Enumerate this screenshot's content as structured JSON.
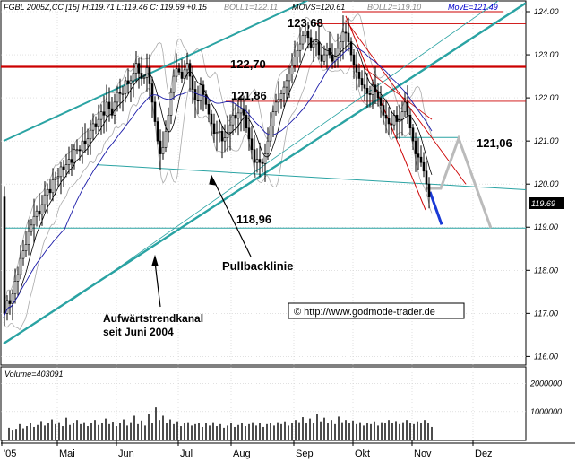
{
  "chart_data": {
    "type": "candlestick",
    "header": {
      "symbol": "FGBL 2005Z,CC [15]",
      "ohlc": "H:119.71 L:119.46 C: 119.69 +0.15",
      "boll1": "BOLL1=122.11",
      "movs": "MOVS=120.61",
      "boll2": "BOLL2=119.10",
      "move": "MovE=121.49"
    },
    "price_axis": {
      "ylim": [
        115.8,
        124.25
      ],
      "ticks": [
        "124.00",
        "123.00",
        "122.00",
        "121.00",
        "120.00",
        "119.00",
        "118.00",
        "117.00",
        "116.00"
      ],
      "last_price": "119.69"
    },
    "volume_axis": {
      "label": "Volume=403091",
      "ticks": [
        "2000000",
        "1000000"
      ]
    },
    "x_labels": [
      "'05",
      "Mai",
      "Jun",
      "Jul",
      "Aug",
      "Sep",
      "Okt",
      "Nov",
      "Dez"
    ],
    "price_path": [
      [
        0,
        116.9
      ],
      [
        4,
        117.3
      ],
      [
        8,
        117.2
      ],
      [
        12,
        117.7
      ],
      [
        16,
        117.9
      ],
      [
        20,
        118.4
      ],
      [
        24,
        118.5
      ],
      [
        28,
        118.9
      ],
      [
        32,
        119.1
      ],
      [
        36,
        119.4
      ],
      [
        40,
        119.3
      ],
      [
        44,
        119.6
      ],
      [
        48,
        119.9
      ],
      [
        52,
        119.8
      ],
      [
        56,
        120.2
      ],
      [
        60,
        120.1
      ],
      [
        64,
        120.4
      ],
      [
        68,
        120.3
      ],
      [
        72,
        120.6
      ],
      [
        76,
        120.5
      ],
      [
        80,
        120.9
      ],
      [
        84,
        120.7
      ],
      [
        88,
        121.0
      ],
      [
        92,
        120.9
      ],
      [
        96,
        121.2
      ],
      [
        100,
        121.4
      ],
      [
        104,
        121.3
      ],
      [
        108,
        121.7
      ],
      [
        112,
        121.6
      ],
      [
        116,
        122.0
      ],
      [
        120,
        121.5
      ],
      [
        124,
        121.9
      ],
      [
        128,
        122.2
      ],
      [
        132,
        122.0
      ],
      [
        136,
        122.4
      ],
      [
        140,
        122.3
      ],
      [
        144,
        122.5
      ],
      [
        148,
        122.8
      ],
      [
        152,
        122.5
      ],
      [
        156,
        122.4
      ],
      [
        160,
        122.7
      ],
      [
        164,
        122.2
      ],
      [
        168,
        121.6
      ],
      [
        172,
        121.0
      ],
      [
        176,
        120.6
      ],
      [
        180,
        121.1
      ],
      [
        184,
        121.6
      ],
      [
        188,
        122.3
      ],
      [
        192,
        122.7
      ],
      [
        196,
        122.6
      ],
      [
        200,
        122.4
      ],
      [
        204,
        122.9
      ],
      [
        208,
        122.5
      ],
      [
        212,
        122.1
      ],
      [
        216,
        121.8
      ],
      [
        220,
        122.3
      ],
      [
        224,
        122.0
      ],
      [
        228,
        121.7
      ],
      [
        232,
        121.4
      ],
      [
        236,
        121.1
      ],
      [
        240,
        121.3
      ],
      [
        244,
        121.0
      ],
      [
        248,
        121.1
      ],
      [
        252,
        121.3
      ],
      [
        256,
        121.6
      ],
      [
        260,
        121.5
      ],
      [
        264,
        121.8
      ],
      [
        268,
        121.6
      ],
      [
        272,
        121.2
      ],
      [
        276,
        120.9
      ],
      [
        280,
        120.5
      ],
      [
        284,
        120.6
      ],
      [
        288,
        120.4
      ],
      [
        292,
        120.7
      ],
      [
        296,
        121.1
      ],
      [
        300,
        121.6
      ],
      [
        304,
        121.9
      ],
      [
        308,
        122.0
      ],
      [
        312,
        122.2
      ],
      [
        316,
        122.4
      ],
      [
        320,
        122.6
      ],
      [
        324,
        122.9
      ],
      [
        328,
        123.1
      ],
      [
        332,
        123.3
      ],
      [
        336,
        123.6
      ],
      [
        340,
        123.4
      ],
      [
        344,
        123.1
      ],
      [
        348,
        123.4
      ],
      [
        352,
        123.0
      ],
      [
        356,
        122.8
      ],
      [
        360,
        123.2
      ],
      [
        364,
        123.0
      ],
      [
        368,
        122.8
      ],
      [
        372,
        123.1
      ],
      [
        376,
        123.3
      ],
      [
        380,
        123.6
      ],
      [
        384,
        123.4
      ],
      [
        388,
        123.0
      ],
      [
        392,
        122.7
      ],
      [
        396,
        122.5
      ],
      [
        400,
        122.3
      ],
      [
        404,
        122.2
      ],
      [
        408,
        122.0
      ],
      [
        412,
        122.3
      ],
      [
        416,
        122.1
      ],
      [
        420,
        121.9
      ],
      [
        424,
        121.6
      ],
      [
        428,
        121.5
      ],
      [
        432,
        121.3
      ],
      [
        436,
        121.6
      ],
      [
        440,
        121.4
      ],
      [
        444,
        121.6
      ],
      [
        448,
        121.9
      ],
      [
        452,
        121.5
      ],
      [
        456,
        121.1
      ],
      [
        460,
        120.7
      ],
      [
        464,
        120.6
      ],
      [
        468,
        120.4
      ],
      [
        472,
        120.0
      ],
      [
        476,
        119.6
      ],
      [
        478,
        119.7
      ]
    ],
    "volumes": [
      [
        6,
        0.42
      ],
      [
        10,
        0.35
      ],
      [
        14,
        0.38
      ],
      [
        18,
        0.55
      ],
      [
        22,
        0.4
      ],
      [
        26,
        0.48
      ],
      [
        30,
        0.6
      ],
      [
        34,
        0.45
      ],
      [
        38,
        0.52
      ],
      [
        42,
        0.66
      ],
      [
        46,
        0.5
      ],
      [
        50,
        0.58
      ],
      [
        54,
        0.72
      ],
      [
        58,
        0.55
      ],
      [
        62,
        0.62
      ],
      [
        66,
        0.48
      ],
      [
        70,
        0.78
      ],
      [
        74,
        0.52
      ],
      [
        78,
        0.6
      ],
      [
        82,
        0.7
      ],
      [
        86,
        0.55
      ],
      [
        90,
        0.62
      ],
      [
        94,
        0.48
      ],
      [
        98,
        0.58
      ],
      [
        102,
        0.7
      ],
      [
        106,
        0.52
      ],
      [
        110,
        0.6
      ],
      [
        114,
        0.75
      ],
      [
        118,
        0.55
      ],
      [
        122,
        0.64
      ],
      [
        126,
        0.48
      ],
      [
        130,
        0.58
      ],
      [
        134,
        0.72
      ],
      [
        138,
        0.5
      ],
      [
        142,
        0.62
      ],
      [
        146,
        0.85
      ],
      [
        150,
        0.55
      ],
      [
        154,
        0.68
      ],
      [
        158,
        0.5
      ],
      [
        162,
        0.9
      ],
      [
        166,
        0.6
      ],
      [
        170,
        1.15
      ],
      [
        174,
        0.7
      ],
      [
        178,
        0.85
      ],
      [
        182,
        0.6
      ],
      [
        186,
        0.72
      ],
      [
        190,
        0.55
      ],
      [
        194,
        0.65
      ],
      [
        198,
        0.48
      ],
      [
        202,
        0.58
      ],
      [
        206,
        0.62
      ],
      [
        210,
        0.5
      ],
      [
        214,
        0.55
      ],
      [
        218,
        0.6
      ],
      [
        222,
        0.45
      ],
      [
        226,
        0.58
      ],
      [
        230,
        0.5
      ],
      [
        234,
        0.62
      ],
      [
        238,
        0.48
      ],
      [
        242,
        0.55
      ],
      [
        246,
        0.42
      ],
      [
        250,
        0.5
      ],
      [
        254,
        0.58
      ],
      [
        258,
        0.45
      ],
      [
        262,
        0.52
      ],
      [
        266,
        0.6
      ],
      [
        270,
        0.48
      ],
      [
        274,
        0.55
      ],
      [
        278,
        0.62
      ],
      [
        282,
        0.5
      ],
      [
        286,
        0.58
      ],
      [
        290,
        0.45
      ],
      [
        294,
        0.55
      ],
      [
        298,
        0.6
      ],
      [
        302,
        0.5
      ],
      [
        306,
        0.62
      ],
      [
        310,
        0.55
      ],
      [
        314,
        0.65
      ],
      [
        318,
        0.5
      ],
      [
        322,
        0.6
      ],
      [
        326,
        0.7
      ],
      [
        330,
        0.62
      ],
      [
        334,
        0.8
      ],
      [
        338,
        0.6
      ],
      [
        342,
        0.75
      ],
      [
        346,
        0.58
      ],
      [
        350,
        0.9
      ],
      [
        354,
        0.65
      ],
      [
        358,
        0.78
      ],
      [
        362,
        0.6
      ],
      [
        366,
        0.7
      ],
      [
        370,
        0.55
      ],
      [
        374,
        0.82
      ],
      [
        378,
        0.62
      ],
      [
        382,
        0.7
      ],
      [
        386,
        0.58
      ],
      [
        390,
        0.68
      ],
      [
        394,
        0.55
      ],
      [
        398,
        0.62
      ],
      [
        402,
        0.5
      ],
      [
        406,
        0.6
      ],
      [
        410,
        0.55
      ],
      [
        414,
        0.65
      ],
      [
        418,
        0.5
      ],
      [
        422,
        0.62
      ],
      [
        426,
        0.58
      ],
      [
        430,
        0.7
      ],
      [
        434,
        0.6
      ],
      [
        438,
        0.66
      ],
      [
        442,
        0.55
      ],
      [
        446,
        0.62
      ],
      [
        450,
        0.7
      ],
      [
        454,
        0.6
      ],
      [
        458,
        0.55
      ],
      [
        462,
        0.65
      ],
      [
        466,
        0.6
      ],
      [
        470,
        0.7
      ],
      [
        474,
        0.58
      ],
      [
        478,
        0.45
      ]
    ],
    "level_labels": [
      "123,68",
      "122,70",
      "121,86",
      "121,06",
      "118,96"
    ],
    "annotations": {
      "pullback": "Pullbacklinie",
      "trend_line1": "Aufwärtstrendkanal",
      "trend_line2": "seit Juni 2004",
      "copyright": "© http://www.godmode-trader.de"
    }
  }
}
